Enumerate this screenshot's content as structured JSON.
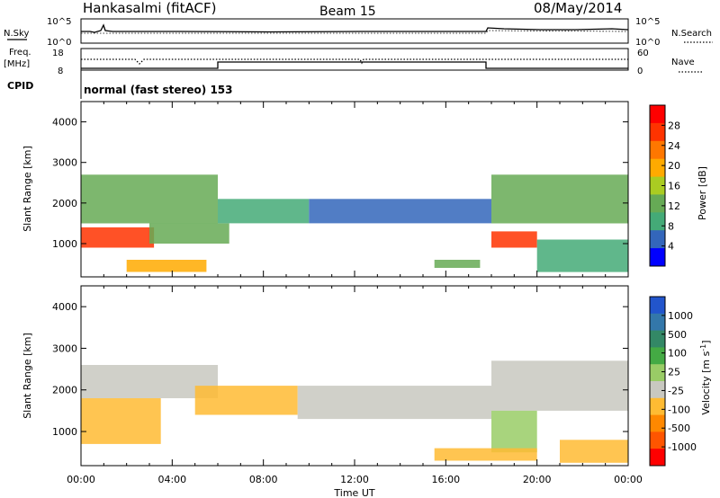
{
  "header": {
    "station": "Hankasalmi (fitACF)",
    "beam": "Beam 15",
    "date": "08/May/2014"
  },
  "panels": {
    "nsky": {
      "label": "N.Sky",
      "tick_top": "10^5",
      "tick_bottom": "10^0"
    },
    "nsearch": {
      "label": "N.Search",
      "tick_top": "10^5",
      "tick_bottom": "10^0"
    },
    "freq": {
      "label_line1": "Freq.",
      "label_line2": "[MHz]",
      "tick_top": "18",
      "tick_bottom": "8"
    },
    "nave": {
      "label": "Nave",
      "tick_top": "60",
      "tick_bottom": "0"
    },
    "cpid": {
      "label": "CPID",
      "text": "normal (fast stereo) 153"
    }
  },
  "colorbars": {
    "power": {
      "label": "Power [dB]",
      "ticks": [
        "28",
        "24",
        "20",
        "16",
        "12",
        "8",
        "4"
      ],
      "colors": [
        "#ff0000",
        "#ff3300",
        "#ff7700",
        "#ffaa00",
        "#aacc22",
        "#66aa55",
        "#44aa77",
        "#3366bb",
        "#0000ff"
      ]
    },
    "velocity": {
      "label": "Velocity [m s",
      "label_sup": "-1",
      "label_end": "]",
      "ticks": [
        "1000",
        "500",
        "100",
        "25",
        "-25",
        "-100",
        "-500",
        "-1000"
      ],
      "colors": [
        "#2255cc",
        "#3377aa",
        "#338866",
        "#44aa44",
        "#99cc66",
        "#c8c8c0",
        "#ffbb33",
        "#ff8800",
        "#ff5500",
        "#ff0000"
      ]
    }
  },
  "axes": {
    "ylabel": "Slant Range [km]",
    "yticks": [
      "4000",
      "3000",
      "2000",
      "1000"
    ],
    "xlabel": "Time UT",
    "xticks": [
      "00:00",
      "04:00",
      "08:00",
      "12:00",
      "16:00",
      "20:00",
      "00:00"
    ]
  },
  "chart_data": [
    {
      "type": "heatmap",
      "name": "power",
      "x_range_hours": [
        0,
        24
      ],
      "ylim_km": [
        180,
        4500
      ],
      "colorbar_range_db": [
        0,
        32
      ],
      "regions": [
        {
          "t0": 0.0,
          "t1": 3.2,
          "r0": 900,
          "r1": 1400,
          "value": 26
        },
        {
          "t0": 0.0,
          "t1": 6.0,
          "r0": 1500,
          "r1": 2700,
          "value": 12
        },
        {
          "t0": 3.0,
          "t1": 6.5,
          "r0": 1000,
          "r1": 1500,
          "value": 14
        },
        {
          "t0": 6.0,
          "t1": 10.0,
          "r0": 1500,
          "r1": 2100,
          "value": 10
        },
        {
          "t0": 10.0,
          "t1": 18.0,
          "r0": 1500,
          "r1": 2100,
          "value": 6
        },
        {
          "t0": 15.5,
          "t1": 17.5,
          "r0": 400,
          "r1": 600,
          "value": 14
        },
        {
          "t0": 18.0,
          "t1": 20.0,
          "r0": 900,
          "r1": 1300,
          "value": 28
        },
        {
          "t0": 18.0,
          "t1": 24.0,
          "r0": 1500,
          "r1": 2700,
          "value": 12
        },
        {
          "t0": 2.0,
          "t1": 5.5,
          "r0": 300,
          "r1": 600,
          "value": 18
        },
        {
          "t0": 20.0,
          "t1": 24.0,
          "r0": 300,
          "r1": 1100,
          "value": 10
        }
      ]
    },
    {
      "type": "heatmap",
      "name": "velocity",
      "x_range_hours": [
        0,
        24
      ],
      "ylim_km": [
        180,
        4500
      ],
      "colorbar_range_ms": [
        -1000,
        1000
      ],
      "regions": [
        {
          "t0": 0.0,
          "t1": 3.5,
          "r0": 700,
          "r1": 1800,
          "value": -300
        },
        {
          "t0": 0.0,
          "t1": 6.0,
          "r0": 1800,
          "r1": 2600,
          "value": 0
        },
        {
          "t0": 5.0,
          "t1": 9.5,
          "r0": 1400,
          "r1": 2100,
          "value": -200
        },
        {
          "t0": 9.5,
          "t1": 18.0,
          "r0": 1300,
          "r1": 2100,
          "value": 0
        },
        {
          "t0": 18.0,
          "t1": 24.0,
          "r0": 1500,
          "r1": 2700,
          "value": 0
        },
        {
          "t0": 18.0,
          "t1": 20.0,
          "r0": 500,
          "r1": 1500,
          "value": 120
        },
        {
          "t0": 15.5,
          "t1": 20.0,
          "r0": 300,
          "r1": 600,
          "value": -200
        },
        {
          "t0": 21.0,
          "t1": 24.0,
          "r0": 250,
          "r1": 800,
          "value": -300
        }
      ]
    }
  ]
}
